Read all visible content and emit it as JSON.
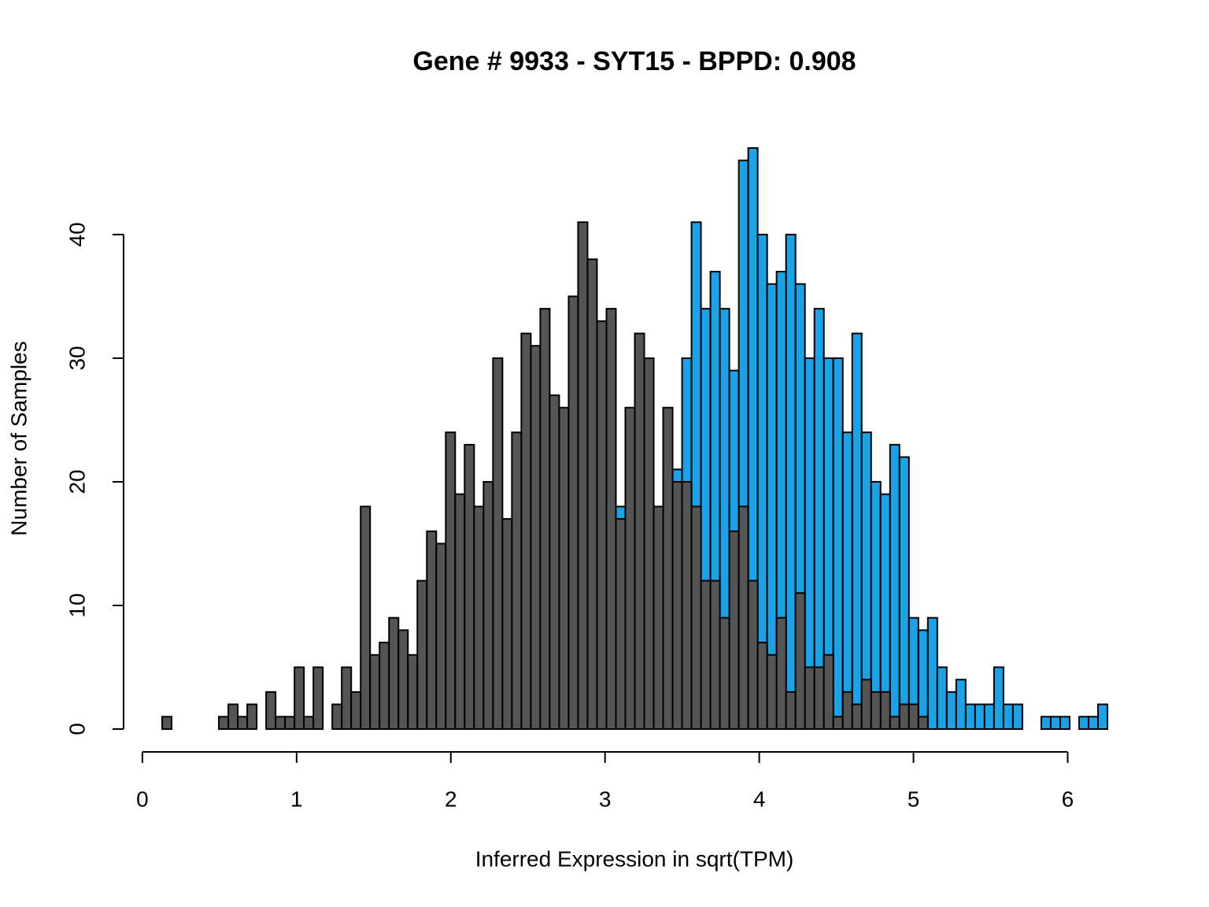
{
  "chart_data": {
    "type": "histogram",
    "title": "Gene # 9933 - SYT15 - BPPD: 0.908",
    "x_label": "Inferred Expression in sqrt(TPM)",
    "y_label": "Number of Samples",
    "bins": [
      0.128,
      0.1893,
      0.2506,
      0.3119,
      0.3732,
      0.4345,
      0.4958,
      0.5571,
      0.6184,
      0.6797,
      0.741,
      0.8023,
      0.8636,
      0.9249,
      0.9862,
      1.0475,
      1.1088,
      1.1701,
      1.2314,
      1.2927,
      1.354,
      1.4153,
      1.4766,
      1.5379,
      1.5992,
      1.6605,
      1.7218,
      1.7831,
      1.8444,
      1.9057,
      1.967,
      2.0283,
      2.0896,
      2.1509,
      2.2122,
      2.2735,
      2.3348,
      2.3961,
      2.4574,
      2.5187,
      2.58,
      2.6413,
      2.7026,
      2.7639,
      2.8252,
      2.8865,
      2.9478,
      3.0091,
      3.0704,
      3.1317,
      3.193,
      3.2543,
      3.3156,
      3.3769,
      3.4382,
      3.4995,
      3.5608,
      3.6221,
      3.6834,
      3.7447,
      3.806,
      3.8673,
      3.9286,
      3.9899,
      4.0512,
      4.1125,
      4.1738,
      4.2351,
      4.2964,
      4.3577,
      4.419,
      4.4803,
      4.5416,
      4.6029,
      4.6642,
      4.7255,
      4.7868,
      4.8481,
      4.9094,
      4.9707,
      5.032,
      5.0933,
      5.1546,
      5.2159,
      5.2772,
      5.3385,
      5.3998,
      5.4611,
      5.5224,
      5.5837,
      5.645,
      5.7063,
      5.7676,
      5.8289,
      5.8902,
      5.9515,
      6.0128,
      6.0741,
      6.1354,
      6.1967,
      6.258
    ],
    "series": [
      {
        "color": "#1ba1e6",
        "values": [
          0,
          0,
          0,
          0,
          0,
          0,
          0,
          0,
          0,
          0,
          0,
          0,
          0,
          0,
          0,
          0,
          0,
          0,
          0,
          0,
          0,
          1,
          0,
          0,
          0,
          0,
          0,
          0,
          0,
          0,
          1,
          0,
          1,
          2,
          0,
          1,
          0,
          1,
          0,
          2,
          1,
          1,
          2,
          3,
          7,
          6,
          8,
          9,
          18,
          13,
          13,
          12,
          16,
          20,
          21,
          30,
          41,
          34,
          37,
          34,
          29,
          46,
          47,
          40,
          36,
          37,
          40,
          36,
          30,
          34,
          30,
          30,
          24,
          32,
          24,
          20,
          19,
          23,
          22,
          9,
          8,
          9,
          5,
          3,
          4,
          2,
          2,
          2,
          5,
          2,
          2,
          0,
          0,
          1,
          1,
          1,
          0,
          1,
          1,
          2
        ]
      },
      {
        "color": "#555555",
        "values": [
          1,
          0,
          0,
          0,
          0,
          0,
          1,
          2,
          1,
          2,
          0,
          3,
          1,
          1,
          5,
          1,
          5,
          0,
          2,
          5,
          3,
          18,
          6,
          7,
          9,
          8,
          6,
          12,
          16,
          15,
          24,
          19,
          23,
          18,
          20,
          30,
          17,
          24,
          32,
          31,
          34,
          27,
          26,
          35,
          41,
          38,
          33,
          34,
          17,
          26,
          32,
          30,
          18,
          26,
          20,
          20,
          18,
          12,
          12,
          9,
          16,
          18,
          12,
          7,
          6,
          9,
          3,
          11,
          5,
          5,
          6,
          1,
          3,
          2,
          4,
          3,
          3,
          1,
          2,
          2,
          1,
          0,
          0,
          0,
          0,
          0,
          0,
          0,
          0,
          0,
          0,
          0,
          0,
          0,
          0,
          0,
          0,
          0,
          0,
          0
        ]
      }
    ],
    "xlim": [
      0.128,
      6.258
    ],
    "xticks": [
      0,
      1,
      2,
      3,
      4,
      5,
      6
    ],
    "ylim": [
      0,
      47
    ],
    "yticks": [
      0,
      10,
      20,
      30,
      40
    ]
  }
}
